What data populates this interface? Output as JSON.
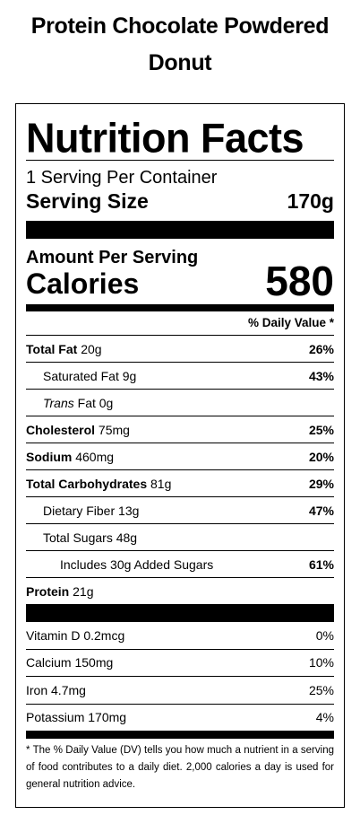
{
  "product_title": "Protein Chocolate Powdered Donut",
  "label": {
    "heading": "Nutrition Facts",
    "servings_per_container": "1 Serving Per Container",
    "serving_size_label": "Serving Size",
    "serving_size_value": "170g",
    "amount_per_serving": "Amount Per Serving",
    "calories_label": "Calories",
    "calories_value": "580",
    "daily_value_header": "% Daily Value *",
    "nutrients": [
      {
        "name": "Total Fat",
        "amount": "20g",
        "dv": "26%"
      },
      {
        "name": "Saturated Fat",
        "amount": "9g",
        "dv": "43%"
      },
      {
        "name": "Trans",
        "name_suffix": "Fat",
        "amount": "0g",
        "dv": ""
      },
      {
        "name": "Cholesterol",
        "amount": "75mg",
        "dv": "25%"
      },
      {
        "name": "Sodium",
        "amount": "460mg",
        "dv": "20%"
      },
      {
        "name": "Total Carbohydrates",
        "amount": "81g",
        "dv": "29%"
      },
      {
        "name": "Dietary Fiber",
        "amount": "13g",
        "dv": "47%"
      },
      {
        "name": "Total Sugars",
        "amount": "48g",
        "dv": ""
      },
      {
        "name": "Includes 30g Added Sugars",
        "amount": "",
        "dv": "61%"
      },
      {
        "name": "Protein",
        "amount": "21g",
        "dv": ""
      }
    ],
    "vitamins": [
      {
        "name": "Vitamin D",
        "amount": "0.2mcg",
        "dv": "0%"
      },
      {
        "name": "Calcium",
        "amount": "150mg",
        "dv": "10%"
      },
      {
        "name": "Iron",
        "amount": "4.7mg",
        "dv": "25%"
      },
      {
        "name": "Potassium",
        "amount": "170mg",
        "dv": "4%"
      }
    ],
    "footnote": "* The % Daily Value (DV) tells you how much a nutrient in a serving of food contributes to a daily diet. 2,000 calories a day is used for general nutrition advice."
  }
}
